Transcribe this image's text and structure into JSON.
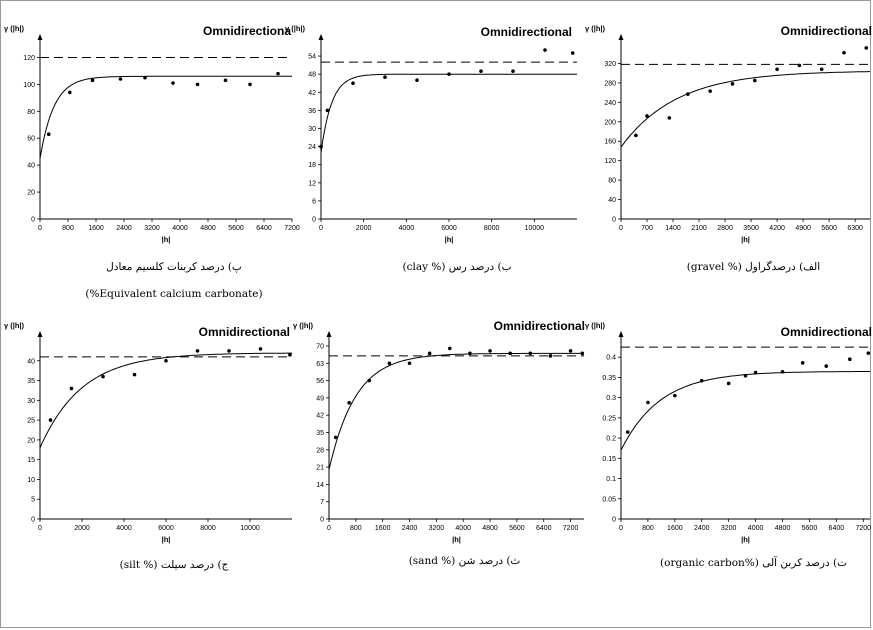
{
  "chart_data": [
    {
      "id": "caco3",
      "type": "scatter",
      "title": "Omnidirectiona",
      "ylabel": "γ (|h|)",
      "xlabel": "|h|",
      "caption": "پ) درصد کربنات کلسیم معادل",
      "caption2": "(%Equivalent calcium carbonate)",
      "xlim": [
        0,
        7200
      ],
      "ylim": [
        0,
        130
      ],
      "xticks": [
        "0",
        "800",
        "1600",
        "2400",
        "3200",
        "4000",
        "4800",
        "5600",
        "6400",
        "7200"
      ],
      "yticks": [
        "0",
        "20",
        "40",
        "60",
        "80",
        "100",
        "120"
      ],
      "sill": 120,
      "model": {
        "nugget": 45,
        "sill": 106,
        "range": 1200
      },
      "points": [
        [
          250,
          63
        ],
        [
          850,
          94
        ],
        [
          1500,
          103
        ],
        [
          2300,
          104
        ],
        [
          3000,
          105
        ],
        [
          3800,
          101
        ],
        [
          4500,
          100
        ],
        [
          5300,
          103
        ],
        [
          6000,
          100
        ],
        [
          6800,
          108
        ]
      ]
    },
    {
      "id": "clay",
      "type": "scatter",
      "title": "Omnidirectional",
      "ylabel": "γ (|h|)",
      "xlabel": "|h|",
      "caption": "ب) درصد رس (% clay)",
      "xlim": [
        0,
        12000
      ],
      "ylim": [
        0,
        58
      ],
      "xticks": [
        "0",
        "2000",
        "4000",
        "6000",
        "8000",
        "10000"
      ],
      "yticks": [
        "0",
        "6",
        "12",
        "18",
        "24",
        "30",
        "36",
        "42",
        "48",
        "54"
      ],
      "sill": 52,
      "model": {
        "nugget": 22,
        "sill": 48,
        "range": 1500
      },
      "points": [
        [
          0,
          24
        ],
        [
          300,
          36
        ],
        [
          1500,
          45
        ],
        [
          3000,
          47
        ],
        [
          4500,
          46
        ],
        [
          6000,
          48
        ],
        [
          7500,
          49
        ],
        [
          9000,
          49
        ],
        [
          10500,
          56
        ],
        [
          11800,
          55
        ]
      ]
    },
    {
      "id": "gravel",
      "type": "scatter",
      "title": "Omnidirectional",
      "ylabel": "γ (|h|)",
      "xlabel": "|h|",
      "caption": "الف) درصدگراول (% gravel)",
      "xlim": [
        0,
        6700
      ],
      "ylim": [
        0,
        360
      ],
      "xticks": [
        "0",
        "700",
        "1400",
        "2100",
        "2800",
        "3500",
        "4200",
        "4900",
        "5600",
        "6300"
      ],
      "yticks": [
        "0",
        "40",
        "80",
        "120",
        "160",
        "200",
        "240",
        "280",
        "320"
      ],
      "sill": 318,
      "model": {
        "nugget": 148,
        "sill": 305,
        "range": 4500
      },
      "points": [
        [
          400,
          172
        ],
        [
          700,
          212
        ],
        [
          1300,
          208
        ],
        [
          1800,
          257
        ],
        [
          2400,
          263
        ],
        [
          3000,
          278
        ],
        [
          3600,
          285
        ],
        [
          4200,
          308
        ],
        [
          4800,
          316
        ],
        [
          5400,
          308
        ],
        [
          6000,
          342
        ],
        [
          6600,
          352
        ]
      ]
    },
    {
      "id": "silt",
      "type": "scatter",
      "title": "Omnidirectional",
      "ylabel": "γ (|h|)",
      "xlabel": "|h|",
      "caption": "ج) درصد سیلت (% silt)",
      "xlim": [
        0,
        12000
      ],
      "ylim": [
        0,
        45
      ],
      "xticks": [
        "0",
        "2000",
        "4000",
        "6000",
        "8000",
        "10000"
      ],
      "yticks": [
        "0",
        "5",
        "10",
        "15",
        "20",
        "25",
        "30",
        "35",
        "40"
      ],
      "sill": 41,
      "model": {
        "nugget": 18,
        "sill": 42,
        "range": 6000
      },
      "points": [
        [
          500,
          25
        ],
        [
          1500,
          33
        ],
        [
          3000,
          36
        ],
        [
          4500,
          36.5
        ],
        [
          6000,
          40
        ],
        [
          7500,
          42.5
        ],
        [
          9000,
          42.5
        ],
        [
          10500,
          43
        ],
        [
          11900,
          41.5
        ]
      ]
    },
    {
      "id": "sand",
      "type": "scatter",
      "title": "Omnidirectional",
      "ylabel": "γ (|h|)",
      "xlabel": "|h|",
      "caption": "ث) درصد شن (% sand)",
      "xlim": [
        0,
        7600
      ],
      "ylim": [
        0,
        72
      ],
      "xticks": [
        "0",
        "800",
        "1600",
        "2400",
        "3200",
        "4000",
        "4800",
        "5600",
        "6400",
        "7200"
      ],
      "yticks": [
        "0",
        "7",
        "14",
        "21",
        "28",
        "35",
        "42",
        "49",
        "56",
        "63",
        "70"
      ],
      "sill": 66,
      "model": {
        "nugget": 20,
        "sill": 67,
        "range": 2400
      },
      "points": [
        [
          200,
          33
        ],
        [
          600,
          47
        ],
        [
          1200,
          56
        ],
        [
          1800,
          63
        ],
        [
          2400,
          63
        ],
        [
          3000,
          67
        ],
        [
          3600,
          69
        ],
        [
          4200,
          67
        ],
        [
          4800,
          68
        ],
        [
          5400,
          67
        ],
        [
          6000,
          67
        ],
        [
          6600,
          66
        ],
        [
          7200,
          68
        ],
        [
          7550,
          67
        ]
      ]
    },
    {
      "id": "organic-carbon",
      "type": "scatter",
      "title": "Omnidirectional",
      "ylabel": "γ (|h|)",
      "xlabel": "|h|",
      "caption": "ت) درصد کربن آلی (%organic carbon)",
      "xlim": [
        0,
        7400
      ],
      "ylim": [
        0,
        0.44
      ],
      "xticks": [
        "0",
        "800",
        "1600",
        "2400",
        "3200",
        "4000",
        "4800",
        "5600",
        "6400",
        "7200"
      ],
      "yticks": [
        "0",
        "0.05",
        "0.1",
        "0.15",
        "0.2",
        "0.25",
        "0.3",
        "0.35",
        "0.4"
      ],
      "sill": 0.425,
      "model": {
        "nugget": 0.17,
        "sill": 0.365,
        "range": 3500
      },
      "points": [
        [
          200,
          0.215
        ],
        [
          800,
          0.288
        ],
        [
          1600,
          0.305
        ],
        [
          2400,
          0.342
        ],
        [
          3200,
          0.335
        ],
        [
          4000,
          0.362
        ],
        [
          4800,
          0.364
        ],
        [
          5400,
          0.386
        ],
        [
          6100,
          0.378
        ],
        [
          6800,
          0.395
        ],
        [
          7350,
          0.41
        ],
        [
          3700,
          0.354
        ]
      ]
    }
  ]
}
